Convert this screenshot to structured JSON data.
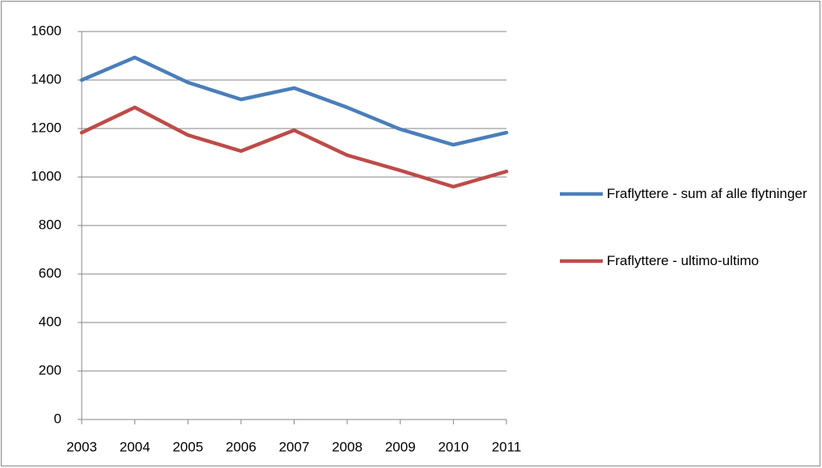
{
  "chart_data": {
    "type": "line",
    "categories": [
      "2003",
      "2004",
      "2005",
      "2006",
      "2007",
      "2008",
      "2009",
      "2010",
      "2011"
    ],
    "series": [
      {
        "name": "Fraflyttere - sum af alle flytninger",
        "color": "#4a7ebb",
        "values": [
          1400,
          1493,
          1390,
          1320,
          1367,
          1287,
          1197,
          1133,
          1183
        ]
      },
      {
        "name": "Fraflyttere - ultimo-ultimo",
        "color": "#be4b48",
        "values": [
          1183,
          1287,
          1173,
          1107,
          1193,
          1090,
          1027,
          960,
          1023
        ]
      }
    ],
    "ylim": [
      0,
      1600
    ],
    "yticks": [
      0,
      200,
      400,
      600,
      800,
      1000,
      1200,
      1400,
      1600
    ],
    "grid": true,
    "legend": "right"
  }
}
